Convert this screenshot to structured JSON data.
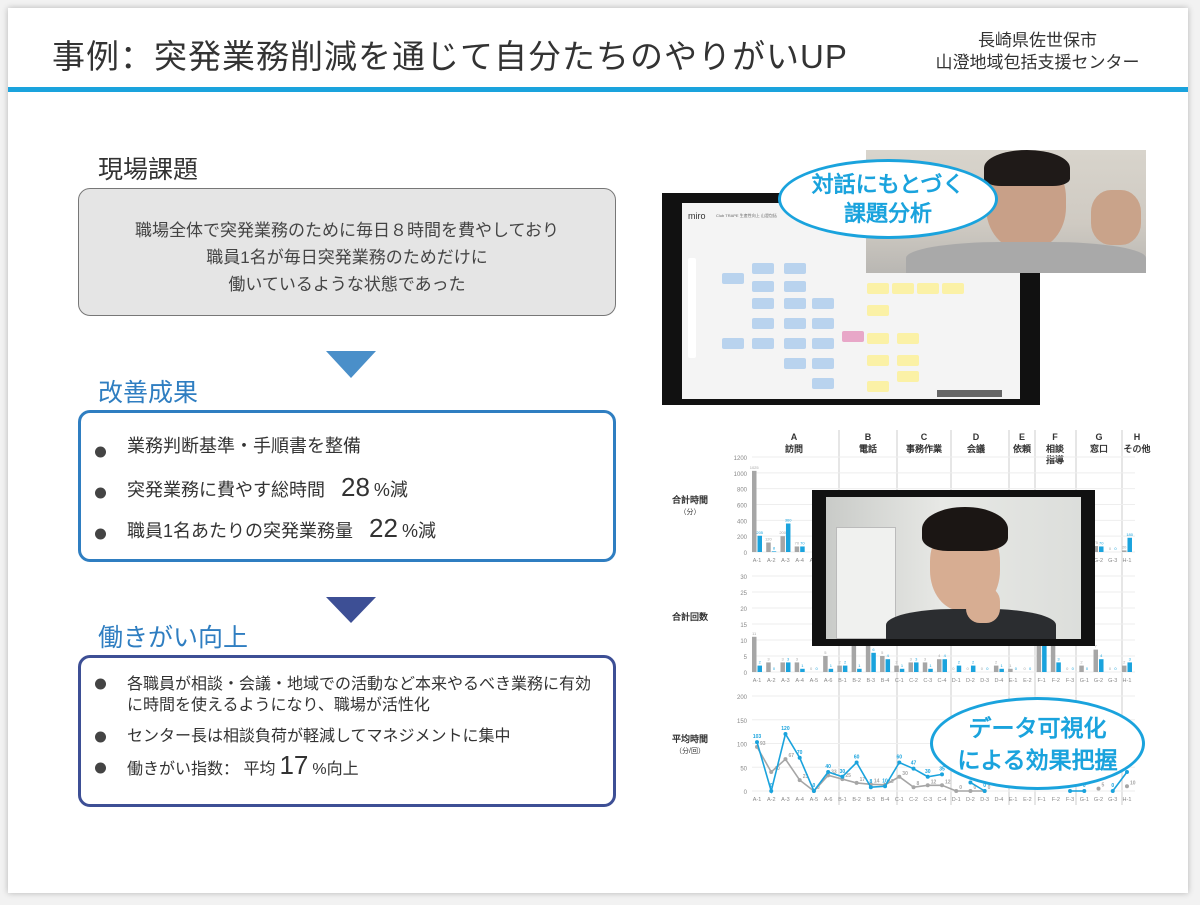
{
  "header": {
    "title": "事例：突発業務削減を通じて自分たちのやりがいUP",
    "org_line1": "長崎県佐世保市",
    "org_line2": "山澄地域包括支援センター",
    "accent": "#1aa3dd"
  },
  "issue": {
    "heading": "現場課題",
    "lines": [
      "職場全体で突発業務のために毎日８時間を費やしており",
      "職員1名が毎日突発業務のためだけに",
      "働いているような状態であった"
    ]
  },
  "results": {
    "heading": "改善成果",
    "items": [
      {
        "text": "業務判断基準・手順書を整備"
      },
      {
        "text": "突発業務に費やす総時間",
        "value": "28",
        "unit": "%減"
      },
      {
        "text": "職員1名あたりの突発業務量",
        "value": "22",
        "unit": "%減"
      }
    ],
    "color": "#2f7ec1"
  },
  "engagement": {
    "heading": "働きがい向上",
    "items": [
      {
        "text": "各職員が相談・会議・地域での活動など本来やるべき業務に有効に時間を使えるようになり、職場が活性化"
      },
      {
        "text": "センター長は相談負荷が軽減してマネジメントに集中"
      },
      {
        "text": "働きがい指数： 平均",
        "value": "17",
        "unit": "%向上"
      }
    ],
    "color": "#3d4f95"
  },
  "bubbles": {
    "dialog": [
      "対話にもとづく",
      "課題分析"
    ],
    "data": [
      "データ可視化",
      "による効果把握"
    ]
  },
  "miro": {
    "logo": "miro",
    "board_title": "Club TRAPE 生産性向上 山澄包括"
  },
  "chart_data": {
    "type": "bar",
    "groups": [
      {
        "letter": "A",
        "name": "訪問"
      },
      {
        "letter": "B",
        "name": "電話"
      },
      {
        "letter": "C",
        "name": "事務作業"
      },
      {
        "letter": "D",
        "name": "会議"
      },
      {
        "letter": "E",
        "name": "依頼"
      },
      {
        "letter": "F",
        "name": "相談指導"
      },
      {
        "letter": "G",
        "name": "窓口"
      },
      {
        "letter": "H",
        "name": "その他"
      }
    ],
    "categories": [
      "A-1",
      "A-2",
      "A-3",
      "A-4",
      "A-5",
      "A-6",
      "B-1",
      "B-2",
      "B-3",
      "B-4",
      "C-1",
      "C-2",
      "C-3",
      "C-4",
      "D-1",
      "D-2",
      "D-3",
      "D-4",
      "E-1",
      "E-2",
      "F-1",
      "F-2",
      "F-3",
      "G-1",
      "G-2",
      "G-3",
      "H-1"
    ],
    "panels": [
      {
        "ylabel": "合計時間",
        "yunit": "（分）",
        "type": "bar",
        "ylim": [
          0,
          1200
        ],
        "ticks": [
          0,
          200,
          400,
          600,
          800,
          1000,
          1200
        ],
        "series": [
          {
            "color": "#a6a6a6",
            "values": [
              1025,
              120,
              200,
              70,
              null,
              null,
              null,
              null,
              null,
              null,
              null,
              null,
              null,
              null,
              null,
              null,
              null,
              null,
              null,
              null,
              null,
              null,
              null,
              null,
              75,
              0,
              20
            ]
          },
          {
            "color": "#1aa3dd",
            "values": [
              205,
              8,
              360,
              70,
              null,
              null,
              null,
              null,
              null,
              null,
              null,
              null,
              null,
              null,
              null,
              null,
              null,
              null,
              null,
              null,
              null,
              null,
              null,
              null,
              70,
              0,
              180
            ]
          }
        ]
      },
      {
        "ylabel": "合計回数",
        "yunit": "",
        "type": "bar",
        "ylim": [
          0,
          30
        ],
        "ticks": [
          0,
          5,
          10,
          15,
          20,
          25,
          30
        ],
        "series": [
          {
            "color": "#a6a6a6",
            "values": [
              11,
              3,
              3,
              3,
              0,
              5,
              2,
              10,
              10,
              5,
              2,
              3,
              3,
              4,
              0,
              0,
              0,
              2,
              1,
              0,
              10,
              10,
              0,
              2,
              7,
              0,
              2
            ]
          },
          {
            "color": "#1aa3dd",
            "values": [
              2,
              0,
              3,
              1,
              0,
              1,
              2,
              1,
              6,
              4,
              1,
              3,
              1,
              4,
              2,
              2,
              0,
              1,
              0,
              0,
              10,
              3,
              0,
              0,
              4,
              0,
              3
            ]
          }
        ]
      },
      {
        "ylabel": "平均時間",
        "yunit": "（分/回）",
        "type": "line",
        "ylim": [
          0,
          200
        ],
        "ticks": [
          0,
          50,
          100,
          150,
          200
        ],
        "series": [
          {
            "color": "#a6a6a6",
            "values": [
              93,
              40,
              67,
              23,
              0,
              33,
              25,
              17,
              14,
              13,
              30,
              8,
              12,
              12,
              0,
              0,
              0,
              null,
              null,
              null,
              null,
              null,
              null,
              null,
              5,
              null,
              10
            ]
          },
          {
            "color": "#1aa3dd",
            "values": [
              103,
              0,
              120,
              70,
              0,
              40,
              30,
              60,
              8,
              10,
              60,
              47,
              30,
              35,
              null,
              18,
              0,
              null,
              null,
              null,
              null,
              null,
              0,
              0,
              null,
              0,
              40
            ]
          }
        ]
      }
    ]
  }
}
